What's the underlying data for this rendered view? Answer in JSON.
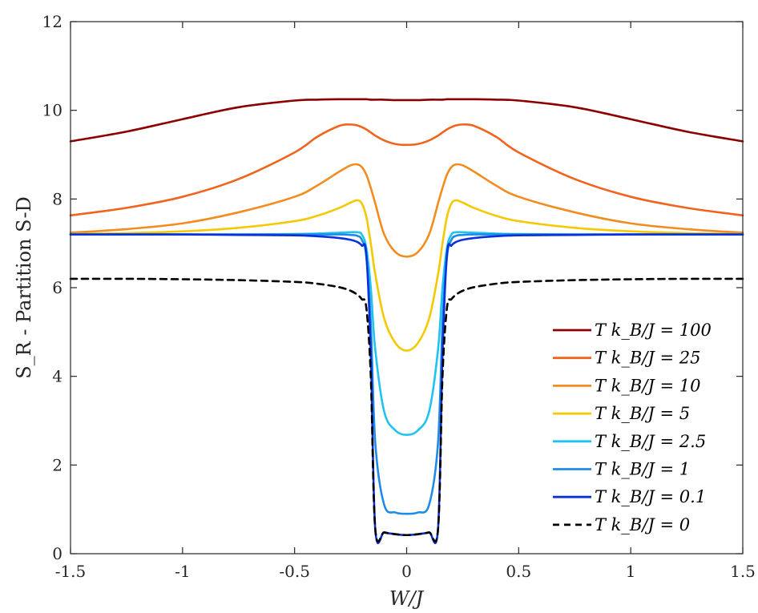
{
  "chart_data": {
    "type": "line",
    "xlabel": "W/J",
    "ylabel": "S_R - Partition S-D",
    "xlim": [
      -1.5,
      1.5
    ],
    "ylim": [
      0,
      12
    ],
    "xticks": [
      -1.5,
      -1,
      -0.5,
      0,
      0.5,
      1,
      1.5
    ],
    "xtick_labels": [
      "-1.5",
      "-1",
      "-0.5",
      "0",
      "0.5",
      "1",
      "1.5"
    ],
    "yticks": [
      0,
      2,
      4,
      6,
      8,
      10,
      12
    ],
    "ytick_labels": [
      "0",
      "2",
      "4",
      "6",
      "8",
      "10",
      "12"
    ],
    "grid": false,
    "legend_position": "lower-right",
    "x": [
      -1.5,
      -1.25,
      -1.0,
      -0.75,
      -0.5,
      -0.4,
      -0.3,
      -0.25,
      -0.22,
      -0.2,
      -0.18,
      -0.16,
      -0.14,
      -0.1,
      -0.05,
      0,
      0.05,
      0.1,
      0.14,
      0.16,
      0.18,
      0.2,
      0.22,
      0.25,
      0.3,
      0.4,
      0.5,
      0.75,
      1.0,
      1.25,
      1.5
    ],
    "series": [
      {
        "name": "T k_B/J = 100",
        "color": "#8b0000",
        "dash": "solid",
        "values": [
          9.3,
          9.52,
          9.8,
          10.07,
          10.22,
          10.24,
          10.25,
          10.25,
          10.25,
          10.25,
          10.25,
          10.24,
          10.24,
          10.24,
          10.23,
          10.23,
          10.23,
          10.24,
          10.24,
          10.24,
          10.25,
          10.25,
          10.25,
          10.25,
          10.25,
          10.24,
          10.22,
          10.07,
          9.8,
          9.52,
          9.3
        ]
      },
      {
        "name": "T k_B/J = 25",
        "color": "#f0641e",
        "dash": "solid",
        "values": [
          7.63,
          7.8,
          8.05,
          8.45,
          9.05,
          9.4,
          9.65,
          9.68,
          9.66,
          9.62,
          9.57,
          9.5,
          9.43,
          9.32,
          9.24,
          9.22,
          9.24,
          9.32,
          9.43,
          9.5,
          9.57,
          9.62,
          9.66,
          9.68,
          9.65,
          9.4,
          9.05,
          8.45,
          8.05,
          7.8,
          7.63
        ]
      },
      {
        "name": "T k_B/J = 10",
        "color": "#f28c1e",
        "dash": "solid",
        "values": [
          7.24,
          7.32,
          7.45,
          7.7,
          8.05,
          8.3,
          8.62,
          8.76,
          8.78,
          8.72,
          8.55,
          8.25,
          7.9,
          7.2,
          6.8,
          6.7,
          6.8,
          7.2,
          7.9,
          8.25,
          8.55,
          8.72,
          8.78,
          8.76,
          8.62,
          8.3,
          8.05,
          7.7,
          7.45,
          7.32,
          7.24
        ]
      },
      {
        "name": "T k_B/J = 5",
        "color": "#f5c800",
        "dash": "solid",
        "values": [
          7.21,
          7.23,
          7.27,
          7.35,
          7.5,
          7.62,
          7.8,
          7.92,
          7.97,
          7.9,
          7.6,
          7.0,
          6.3,
          5.3,
          4.75,
          4.58,
          4.75,
          5.3,
          6.3,
          7.0,
          7.6,
          7.9,
          7.97,
          7.92,
          7.8,
          7.62,
          7.5,
          7.35,
          7.27,
          7.23,
          7.21
        ]
      },
      {
        "name": "T k_B/J = 2.5",
        "color": "#1ec3f0",
        "dash": "solid",
        "values": [
          7.2,
          7.2,
          7.2,
          7.2,
          7.21,
          7.22,
          7.24,
          7.25,
          7.25,
          7.2,
          6.9,
          6.0,
          4.6,
          3.2,
          2.78,
          2.68,
          2.78,
          3.2,
          4.6,
          6.0,
          6.9,
          7.2,
          7.25,
          7.25,
          7.24,
          7.22,
          7.21,
          7.2,
          7.2,
          7.2,
          7.2
        ]
      },
      {
        "name": "T k_B/J = 1",
        "color": "#1e8ce6",
        "dash": "solid",
        "values": [
          7.2,
          7.2,
          7.2,
          7.2,
          7.2,
          7.2,
          7.2,
          7.19,
          7.17,
          7.08,
          6.7,
          5.2,
          2.5,
          1.1,
          0.93,
          0.9,
          0.93,
          1.1,
          2.5,
          5.2,
          6.7,
          7.08,
          7.17,
          7.19,
          7.2,
          7.2,
          7.2,
          7.2,
          7.2,
          7.2,
          7.2
        ]
      },
      {
        "name": "T k_B/J = 0.1",
        "color": "#0a32dc",
        "dash": "solid",
        "values": [
          7.2,
          7.2,
          7.2,
          7.19,
          7.18,
          7.16,
          7.12,
          7.08,
          7.03,
          6.95,
          6.75,
          4.5,
          0.55,
          0.48,
          0.44,
          0.42,
          0.44,
          0.48,
          0.55,
          4.5,
          6.75,
          6.95,
          7.03,
          7.08,
          7.12,
          7.16,
          7.18,
          7.19,
          7.2,
          7.2,
          7.2
        ]
      },
      {
        "name": "T k_B/J = 0",
        "color": "#000000",
        "dash": "dashed",
        "values": [
          6.2,
          6.2,
          6.19,
          6.17,
          6.13,
          6.09,
          6.01,
          5.93,
          5.84,
          5.74,
          5.55,
          4.0,
          0.55,
          0.48,
          0.44,
          0.42,
          0.44,
          0.48,
          0.55,
          4.0,
          5.55,
          5.74,
          5.84,
          5.93,
          6.01,
          6.09,
          6.13,
          6.17,
          6.19,
          6.2,
          6.2
        ]
      }
    ]
  }
}
